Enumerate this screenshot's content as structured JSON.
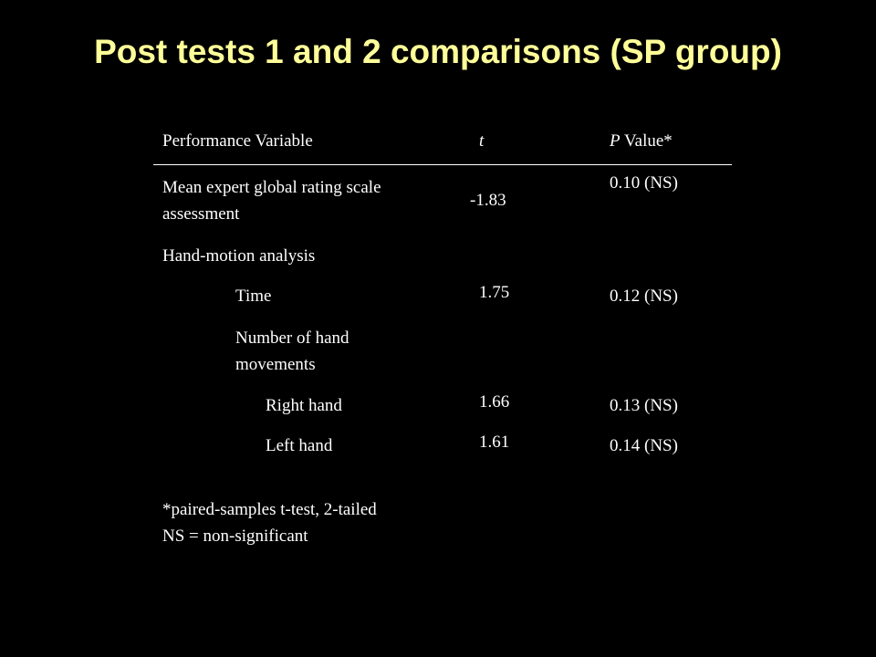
{
  "slide": {
    "title": "Post tests 1 and 2 comparisons (SP group)",
    "title_color": "#ffff99",
    "background": "#000000"
  },
  "table": {
    "headers": {
      "variable": "Performance Variable",
      "t": "t",
      "p_prefix": "P",
      "p_suffix": " Value*"
    },
    "rows": [
      {
        "label": "Mean expert global rating scale assessment",
        "t": "-1.83",
        "p": "0.10 (NS)"
      },
      {
        "label": "Hand-motion analysis",
        "t": "",
        "p": ""
      },
      {
        "label": "Time",
        "t": "1.75",
        "p": "0.12 (NS)"
      },
      {
        "label": "Number of hand movements",
        "t": "",
        "p": ""
      },
      {
        "label": "Right hand",
        "t": "1.66",
        "p": "0.13 (NS)"
      },
      {
        "label": "Left hand",
        "t": "1.61",
        "p": "0.14 (NS)"
      }
    ]
  },
  "footnotes": {
    "line1": "*paired-samples t-test, 2-tailed",
    "line2": "NS = non-significant"
  }
}
